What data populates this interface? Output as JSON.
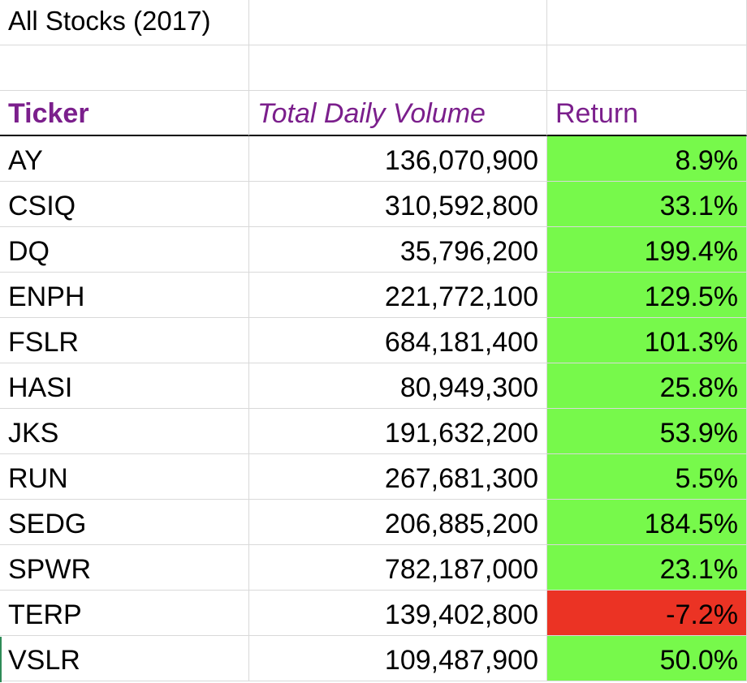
{
  "title": "All Stocks (2017)",
  "headers": {
    "ticker": "Ticker",
    "volume": "Total Daily Volume",
    "return": "Return"
  },
  "colors": {
    "header_text": "#7b1f8c",
    "positive_fill": "#77f94b",
    "negative_fill": "#eb3324"
  },
  "rows": [
    {
      "ticker": "AY",
      "volume": "136,070,900",
      "return": "8.9%",
      "status": "positive"
    },
    {
      "ticker": "CSIQ",
      "volume": "310,592,800",
      "return": "33.1%",
      "status": "positive"
    },
    {
      "ticker": "DQ",
      "volume": "35,796,200",
      "return": "199.4%",
      "status": "positive"
    },
    {
      "ticker": "ENPH",
      "volume": "221,772,100",
      "return": "129.5%",
      "status": "positive"
    },
    {
      "ticker": "FSLR",
      "volume": "684,181,400",
      "return": "101.3%",
      "status": "positive"
    },
    {
      "ticker": "HASI",
      "volume": "80,949,300",
      "return": "25.8%",
      "status": "positive"
    },
    {
      "ticker": "JKS",
      "volume": "191,632,200",
      "return": "53.9%",
      "status": "positive"
    },
    {
      "ticker": "RUN",
      "volume": "267,681,300",
      "return": "5.5%",
      "status": "positive"
    },
    {
      "ticker": "SEDG",
      "volume": "206,885,200",
      "return": "184.5%",
      "status": "positive"
    },
    {
      "ticker": "SPWR",
      "volume": "782,187,000",
      "return": "23.1%",
      "status": "positive"
    },
    {
      "ticker": "TERP",
      "volume": "139,402,800",
      "return": "-7.2%",
      "status": "negative"
    },
    {
      "ticker": "VSLR",
      "volume": "109,487,900",
      "return": "50.0%",
      "status": "positive"
    }
  ]
}
